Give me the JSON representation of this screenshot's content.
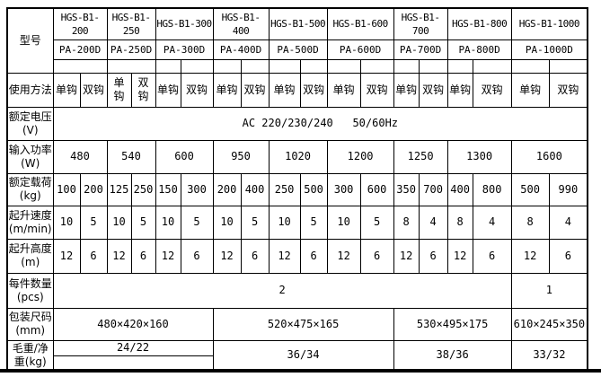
{
  "colors": {
    "border": "#000000",
    "background": "#ffffff",
    "text": "#000000"
  },
  "table": {
    "rows": [
      {
        "name": "model-name",
        "label": {
          "text": "型号",
          "rowspan": 3
        },
        "cells": [
          {
            "text": "HGS-B1-\n200",
            "colspan": 2
          },
          {
            "text": "HGS-B1-\n250",
            "colspan": 2
          },
          {
            "text": "HGS-B1-300",
            "colspan": 2
          },
          {
            "text": "HGS-B1-\n400",
            "colspan": 2
          },
          {
            "text": "HGS-B1-500",
            "colspan": 2
          },
          {
            "text": "HGS-B1-600",
            "colspan": 2
          },
          {
            "text": "HGS-B1-\n700",
            "colspan": 2
          },
          {
            "text": "HGS-B1-800",
            "colspan": 2
          },
          {
            "text": "HGS-B1-1000",
            "colspan": 2
          }
        ]
      },
      {
        "name": "model-pa",
        "cells": [
          {
            "text": "PA-200D",
            "colspan": 2
          },
          {
            "text": "PA-250D",
            "colspan": 2
          },
          {
            "text": "PA-300D",
            "colspan": 2
          },
          {
            "text": "PA-400D",
            "colspan": 2
          },
          {
            "text": "PA-500D",
            "colspan": 2
          },
          {
            "text": "PA-600D",
            "colspan": 2
          },
          {
            "text": "PA-700D",
            "colspan": 2
          },
          {
            "text": "PA-800D",
            "colspan": 2
          },
          {
            "text": "PA-1000D",
            "colspan": 2
          }
        ]
      },
      {
        "name": "spacer",
        "cells": [
          {
            "text": "",
            "colspan": 2
          },
          {
            "text": "",
            "colspan": 2
          },
          "",
          "",
          "",
          "",
          "",
          "",
          "",
          "",
          "",
          "",
          "",
          "",
          "",
          ""
        ]
      },
      {
        "name": "usage",
        "label": {
          "text": "使用方法"
        },
        "cells": [
          "单钩",
          "双钩",
          "单\n钩",
          "双\n钩",
          "单钩",
          "双钩",
          "单钩",
          "双钩",
          "单钩",
          "双钩",
          "单钩",
          "双钩",
          "单钩",
          "双钩",
          "单钩",
          "双钩",
          "单钩",
          "双钩"
        ]
      },
      {
        "name": "voltage",
        "label": {
          "text": "额定电压\n(V)"
        },
        "cells": [
          {
            "text": "AC 220/230/240   50/60Hz",
            "colspan": 18
          }
        ]
      },
      {
        "name": "power",
        "label": {
          "text": "输入功率\n(W)"
        },
        "cells": [
          {
            "text": "480",
            "colspan": 2
          },
          {
            "text": "540",
            "colspan": 2
          },
          {
            "text": "600",
            "colspan": 2
          },
          {
            "text": "950",
            "colspan": 2
          },
          {
            "text": "1020",
            "colspan": 2
          },
          {
            "text": "1200",
            "colspan": 2
          },
          {
            "text": "1250",
            "colspan": 2
          },
          {
            "text": "1300",
            "colspan": 2
          },
          {
            "text": "1600",
            "colspan": 2
          }
        ]
      },
      {
        "name": "load",
        "label": {
          "text": "额定载荷\n(kg)"
        },
        "cells": [
          "100",
          "200",
          "125",
          "250",
          "150",
          "300",
          "200",
          "400",
          "250",
          "500",
          "300",
          "600",
          "350",
          "700",
          "400",
          "800",
          "500",
          "990"
        ]
      },
      {
        "name": "speed",
        "label": {
          "text": "起升速度\n(m/min)"
        },
        "cells": [
          "10",
          "5",
          "10",
          "5",
          "10",
          "5",
          "10",
          "5",
          "10",
          "5",
          "10",
          "5",
          "8",
          "4",
          "8",
          "4",
          "8",
          "4"
        ]
      },
      {
        "name": "height",
        "label": {
          "text": "起升高度\n(m)"
        },
        "cells": [
          "12",
          "6",
          "12",
          "6",
          "12",
          "6",
          "12",
          "6",
          "12",
          "6",
          "12",
          "6",
          "12",
          "6",
          "12",
          "6",
          "12",
          "6"
        ]
      },
      {
        "name": "qty",
        "label": {
          "text": "每件数量\n(pcs)"
        },
        "cells": [
          {
            "text": "2",
            "colspan": 16
          },
          {
            "text": "1",
            "colspan": 2
          }
        ]
      },
      {
        "name": "packing",
        "label": {
          "text": "包装尺码\n(mm)"
        },
        "cells": [
          {
            "text": "480×420×160",
            "colspan": 6
          },
          {
            "text": "520×475×165",
            "colspan": 6
          },
          {
            "text": "530×495×175",
            "colspan": 4
          },
          {
            "text": "610×245×350",
            "colspan": 2
          }
        ]
      },
      {
        "name": "weight-top",
        "label": {
          "text": "毛重/净\n重(kg)",
          "rowspan": 2
        },
        "cells": [
          {
            "text": "24/22",
            "colspan": 6
          },
          {
            "text": "36/34",
            "colspan": 6,
            "rowspan": 2
          },
          {
            "text": "38/36",
            "colspan": 4,
            "rowspan": 2
          },
          {
            "text": "33/32",
            "colspan": 2,
            "rowspan": 2
          }
        ]
      },
      {
        "name": "weight-bottom",
        "cells": [
          {
            "text": "",
            "colspan": 6
          }
        ]
      }
    ]
  }
}
